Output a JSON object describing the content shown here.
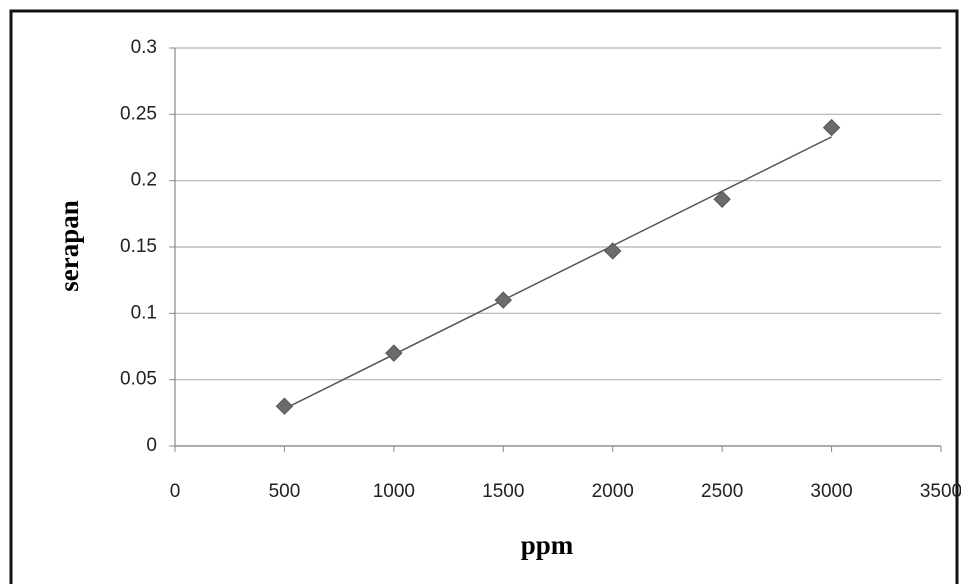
{
  "chart_data": {
    "type": "scatter",
    "x_label": "ppm",
    "y_label": "serapan",
    "x": [
      500,
      1000,
      1500,
      2000,
      2500,
      3000
    ],
    "values": [
      0.03,
      0.07,
      0.11,
      0.147,
      0.186,
      0.24
    ],
    "color": "#6b6b6b",
    "trendline": "linear",
    "xlim": [
      0,
      3500
    ],
    "xticks": [
      0,
      500,
      1000,
      1500,
      2000,
      2500,
      3000,
      3500
    ],
    "ylim": [
      0,
      0.3
    ],
    "yticks": [
      0,
      0.05,
      0.1,
      0.15,
      0.2,
      0.25,
      0.3
    ],
    "grid": true
  }
}
